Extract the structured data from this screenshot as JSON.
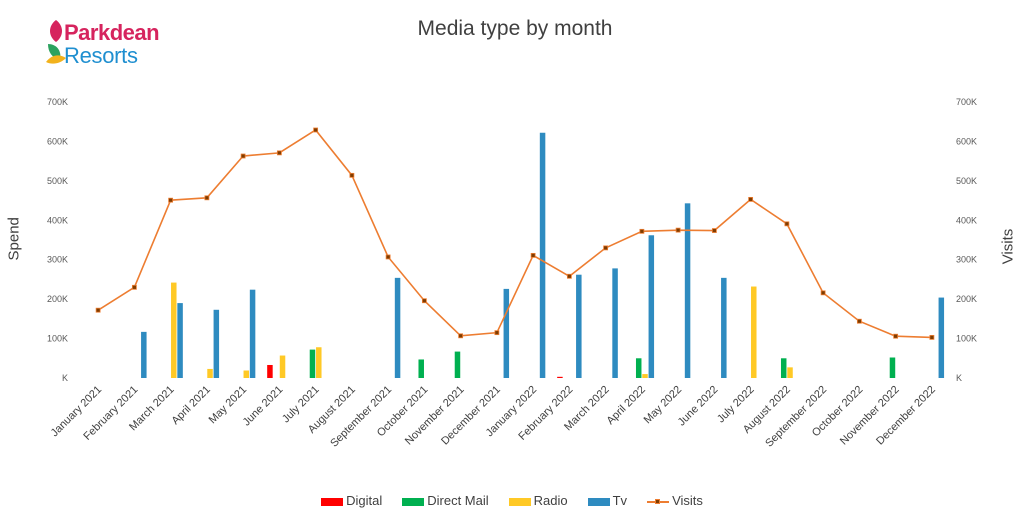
{
  "logo": {
    "line1": "Parkdean",
    "line2": "Resorts"
  },
  "chart_data": {
    "type": "bar",
    "title": "Media type by month",
    "ylabel": "Spend",
    "y2label": "Visits",
    "ylim": [
      0,
      700000
    ],
    "y2lim": [
      0,
      700000
    ],
    "yticks": [
      "K",
      "100K",
      "200K",
      "300K",
      "400K",
      "500K",
      "600K",
      "700K"
    ],
    "y2ticks": [
      "K",
      "100K",
      "200K",
      "300K",
      "400K",
      "500K",
      "600K",
      "700K"
    ],
    "categories": [
      "January 2021",
      "February 2021",
      "March 2021",
      "April 2021",
      "May 2021",
      "June 2021",
      "July 2021",
      "August 2021",
      "September 2021",
      "October 2021",
      "November 2021",
      "December 2021",
      "January 2022",
      "February 2022",
      "March 2022",
      "April 2022",
      "May 2022",
      "June 2022",
      "July 2022",
      "August 2022",
      "September 2022",
      "October 2022",
      "November 2022",
      "December 2022"
    ],
    "series": [
      {
        "name": "Digital",
        "type": "bar",
        "color": "#ff0000",
        "values": [
          0,
          0,
          0,
          0,
          0,
          33000,
          0,
          0,
          0,
          0,
          0,
          0,
          0,
          3000,
          0,
          0,
          0,
          0,
          0,
          0,
          0,
          0,
          0,
          0
        ]
      },
      {
        "name": "Direct Mail",
        "type": "bar",
        "color": "#00b050",
        "values": [
          0,
          0,
          0,
          0,
          0,
          0,
          72000,
          0,
          0,
          47000,
          67000,
          0,
          0,
          0,
          0,
          50000,
          0,
          0,
          0,
          50000,
          0,
          0,
          52000,
          0
        ]
      },
      {
        "name": "Radio",
        "type": "bar",
        "color": "#ffc926",
        "values": [
          0,
          0,
          242000,
          23000,
          19000,
          57000,
          78000,
          0,
          0,
          0,
          0,
          0,
          0,
          0,
          0,
          10000,
          0,
          0,
          232000,
          27000,
          0,
          0,
          0,
          0
        ]
      },
      {
        "name": "Tv",
        "type": "bar",
        "color": "#2e8bc0",
        "values": [
          0,
          117000,
          190000,
          173000,
          224000,
          0,
          0,
          0,
          254000,
          0,
          0,
          226000,
          622000,
          262000,
          278000,
          362000,
          443000,
          254000,
          0,
          0,
          0,
          0,
          0,
          204000
        ]
      },
      {
        "name": "Visits",
        "type": "line",
        "axis": "right",
        "color": "#ed7d31",
        "values": [
          172000,
          230000,
          451000,
          457000,
          563000,
          571000,
          629000,
          514000,
          307000,
          196000,
          107000,
          115000,
          311000,
          258000,
          330000,
          372000,
          375000,
          374000,
          453000,
          391000,
          216000,
          144000,
          106000,
          103000
        ]
      }
    ],
    "legend": "bottom",
    "grid": false
  }
}
